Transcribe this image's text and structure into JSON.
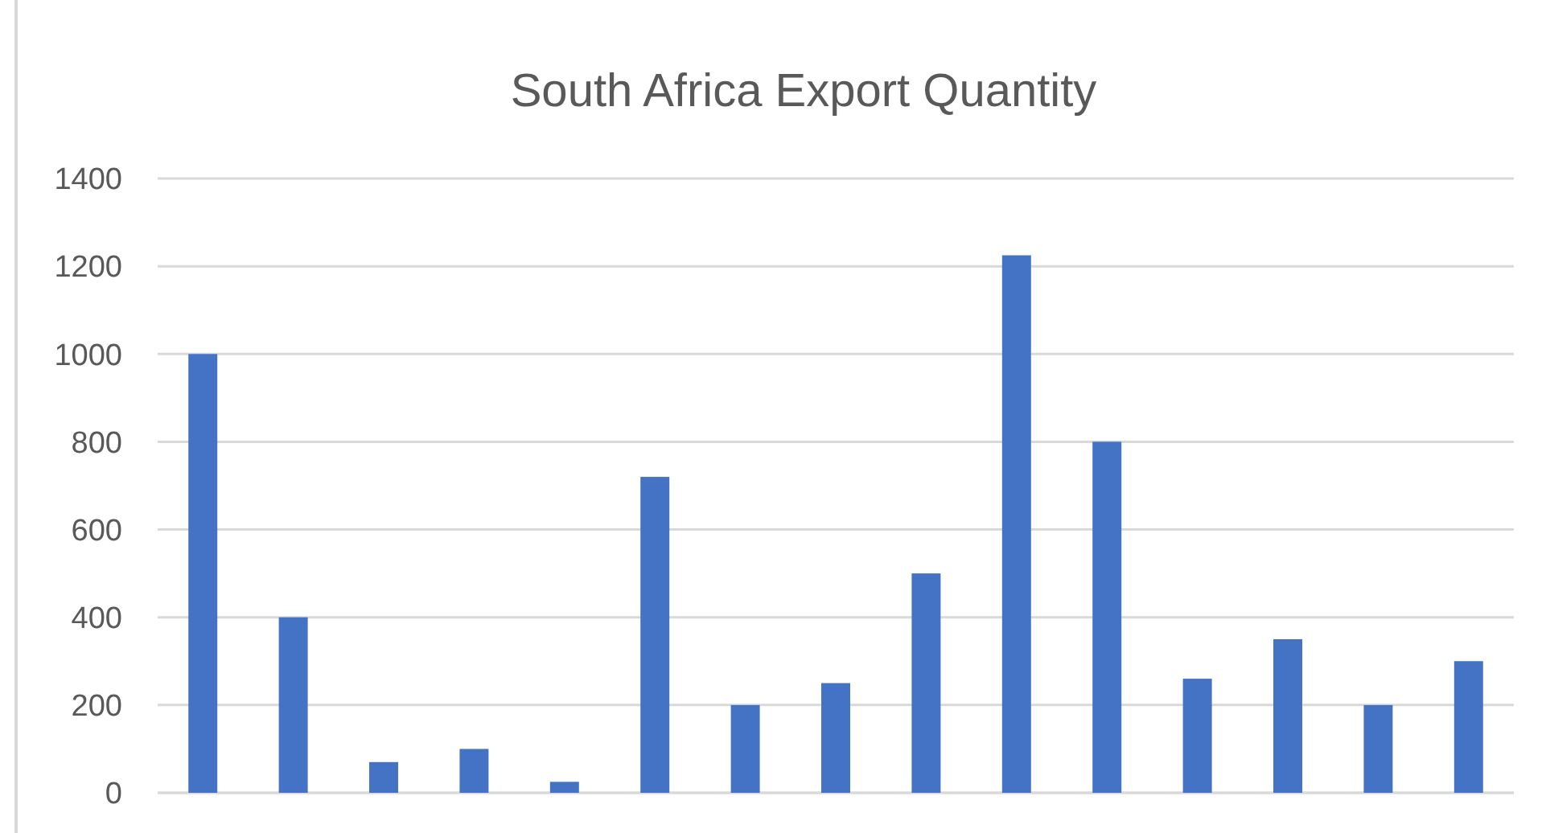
{
  "chart_data": {
    "type": "bar",
    "title": "South Africa Export Quantity",
    "categories": [
      null,
      null,
      null,
      null,
      null,
      null,
      null,
      null,
      null,
      null,
      null,
      null,
      null,
      null,
      null
    ],
    "values": [
      1000,
      400,
      70,
      100,
      25,
      720,
      200,
      250,
      500,
      1225,
      800,
      260,
      350,
      200,
      300
    ],
    "color": "#4472c4",
    "ylim": [
      0,
      1400
    ],
    "yticks": [
      0,
      200,
      400,
      600,
      800,
      1000,
      1200,
      1400
    ],
    "grid": "y",
    "tick_labels": "y"
  }
}
